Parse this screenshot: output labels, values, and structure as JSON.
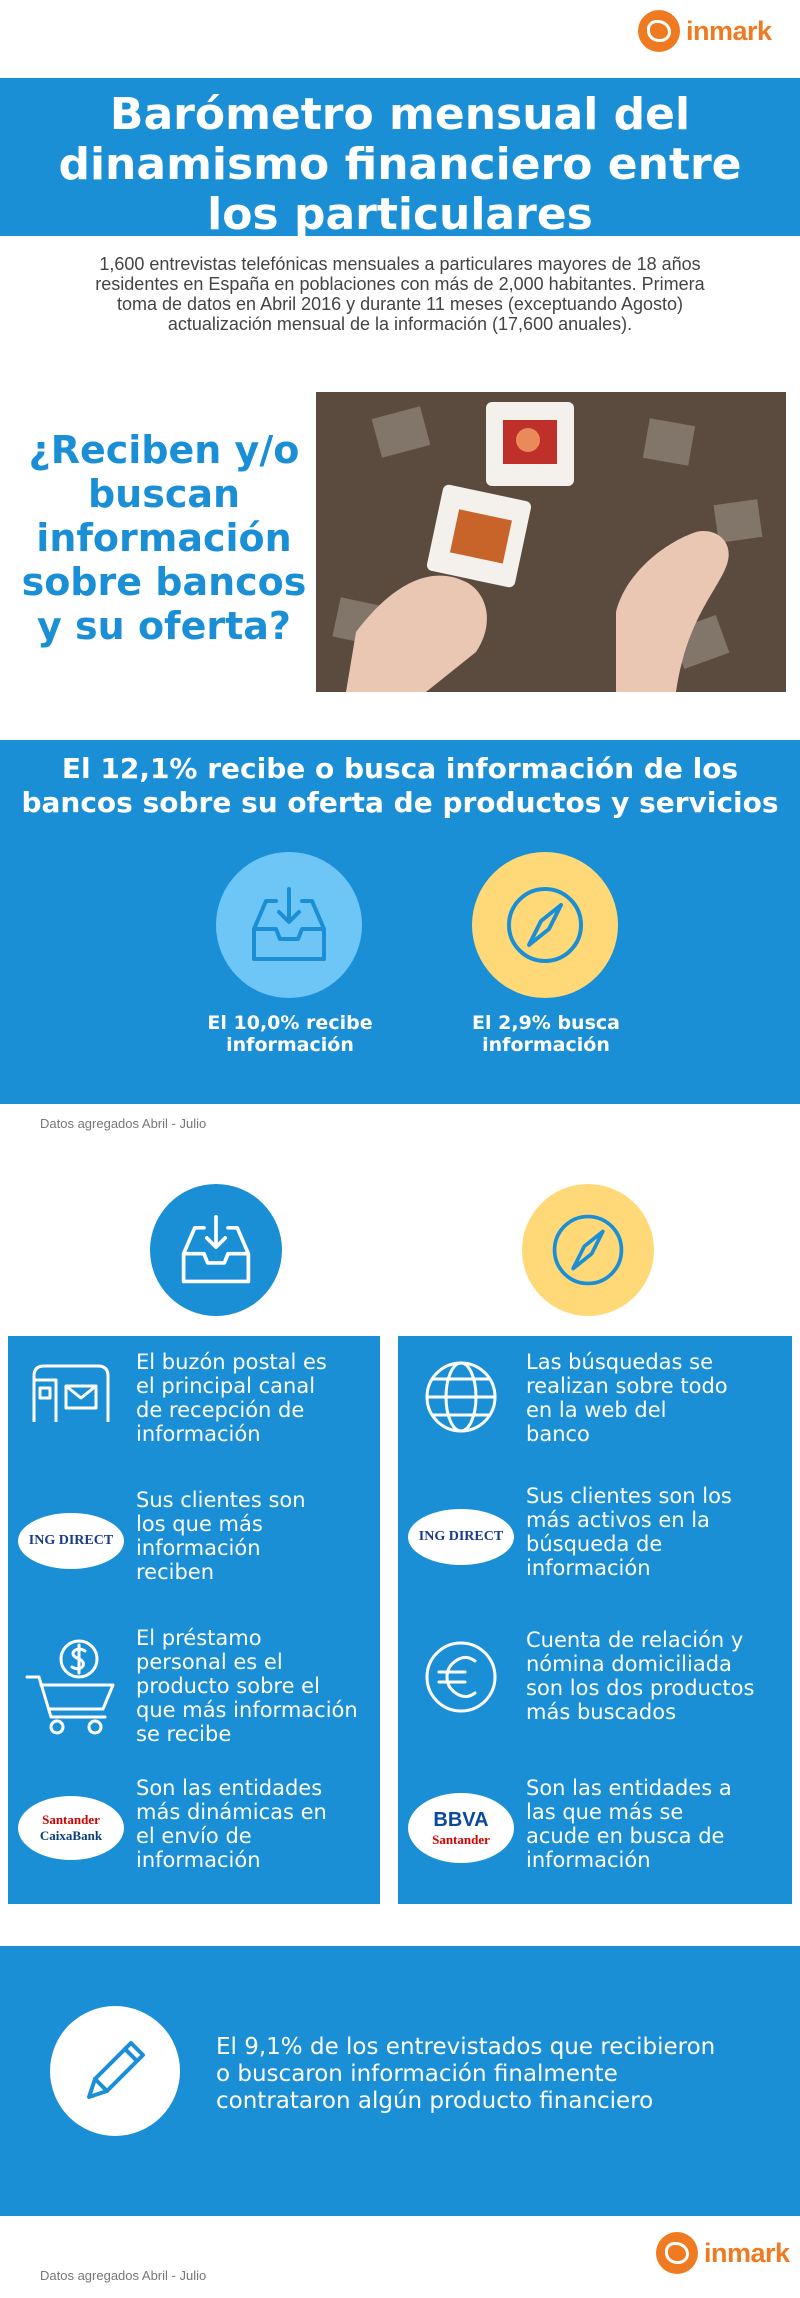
{
  "brand": {
    "name": "inmark"
  },
  "header": {
    "title_lines": [
      "Barómetro mensual del",
      "dinamismo financiero entre",
      "los particulares"
    ]
  },
  "intro": {
    "lines": [
      "1,600 entrevistas telefónicas mensuales a particulares mayores de 18 años",
      "residentes en España en poblaciones con más de 2,000 habitantes. Primera",
      "toma de datos en Abril 2016 y durante 11 meses (exceptuando Agosto)",
      "actualización mensual de la información (17,600 anuales)."
    ]
  },
  "question": {
    "lines": [
      "¿Reciben y/o",
      "buscan",
      "información",
      "sobre bancos",
      "y su oferta?"
    ]
  },
  "summary": {
    "headline_lines": [
      "El 12,1% recibe o busca información de los",
      "bancos sobre su oferta de productos y servicios"
    ],
    "recibe": {
      "line1": "El 10,0% recibe",
      "line2": "información",
      "value_pct": 10.0
    },
    "busca": {
      "line1": "El 2,9% busca",
      "line2": "información",
      "value_pct": 2.9
    },
    "total_pct": 12.1,
    "footnote": "Datos agregados Abril - Julio"
  },
  "colors": {
    "primary_blue": "#1a8fd6",
    "light_blue": "#6ec6f7",
    "yellow": "#ffd978",
    "orange": "#f07a21"
  },
  "left_panel": {
    "rows": [
      {
        "icon": "mailbox-icon",
        "lines": [
          "El buzón postal es",
          "el principal canal",
          "de recepción de",
          "información"
        ]
      },
      {
        "icon": "ing-direct-logo",
        "bank_label": "ING DIRECT",
        "lines": [
          "Sus clientes son",
          "los que más",
          "información",
          "reciben"
        ]
      },
      {
        "icon": "shopping-cart-dollar-icon",
        "lines": [
          "El préstamo",
          "personal es el",
          "producto sobre el",
          "que más información",
          "se recibe"
        ]
      },
      {
        "icon": "santander-caixabank-logo",
        "bank_labels": [
          "Santander",
          "CaixaBank"
        ],
        "lines": [
          "Son las entidades",
          "más dinámicas en",
          "el envío de",
          "información"
        ]
      }
    ]
  },
  "right_panel": {
    "rows": [
      {
        "icon": "globe-icon",
        "lines": [
          "Las búsquedas se",
          "realizan sobre todo",
          "en la web del",
          "banco"
        ]
      },
      {
        "icon": "ing-direct-logo",
        "bank_label": "ING DIRECT",
        "lines": [
          "Sus clientes son los",
          "más activos en la",
          "búsqueda de",
          "información"
        ]
      },
      {
        "icon": "euro-icon",
        "lines": [
          "Cuenta de relación y",
          "nómina domiciliada",
          "son los dos productos",
          "más buscados"
        ]
      },
      {
        "icon": "bbva-santander-logo",
        "bank_labels": [
          "BBVA",
          "Santander"
        ],
        "lines": [
          "Son las entidades a",
          "las que más se",
          "acude en busca de",
          "información"
        ]
      }
    ]
  },
  "conclusion": {
    "lines": [
      "El 9,1% de los entrevistados que recibieron",
      "o buscaron información finalmente",
      "contrataron algún producto financiero"
    ],
    "value_pct": 9.1
  },
  "footer": {
    "footnote": "Datos agregados Abril - Julio"
  }
}
